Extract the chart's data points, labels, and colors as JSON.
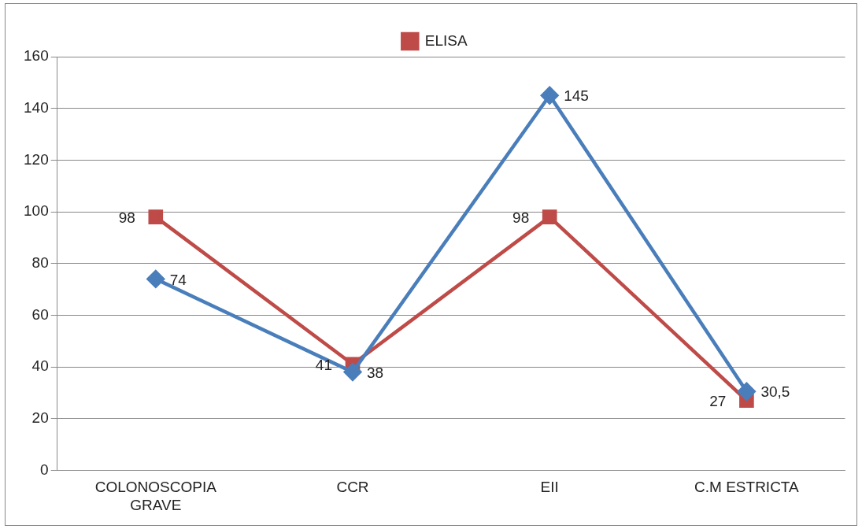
{
  "chart_data": {
    "type": "line",
    "categories": [
      "COLONOSCOPIA GRAVE",
      "CCR",
      "EII",
      "C.M ESTRICTA"
    ],
    "series": [
      {
        "color": "#4a7ebb",
        "marker": "diamond",
        "values": [
          74,
          38,
          145,
          30.5
        ],
        "value_labels": [
          "74",
          "38",
          "145",
          "30,5"
        ]
      },
      {
        "name": "ELISA",
        "color": "#be4b48",
        "marker": "square",
        "values": [
          98,
          41,
          98,
          27
        ],
        "value_labels": [
          "98",
          "41",
          "98",
          "27"
        ]
      }
    ],
    "ylim": [
      0,
      160
    ],
    "yticks": [
      0,
      20,
      40,
      60,
      80,
      100,
      120,
      140,
      160
    ],
    "grid": "y",
    "legend": "top"
  }
}
